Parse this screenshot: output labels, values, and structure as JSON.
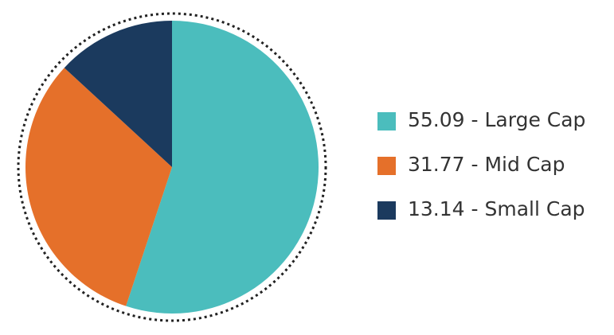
{
  "chart_data": {
    "type": "pie",
    "categories": [
      "55.09 - Large Cap",
      "31.77 - Mid Cap",
      "13.14 - Small Cap"
    ],
    "values": [
      55.09,
      31.77,
      13.14
    ],
    "colors": [
      "#4bbdbd",
      "#e5702a",
      "#1b3a5e"
    ]
  }
}
